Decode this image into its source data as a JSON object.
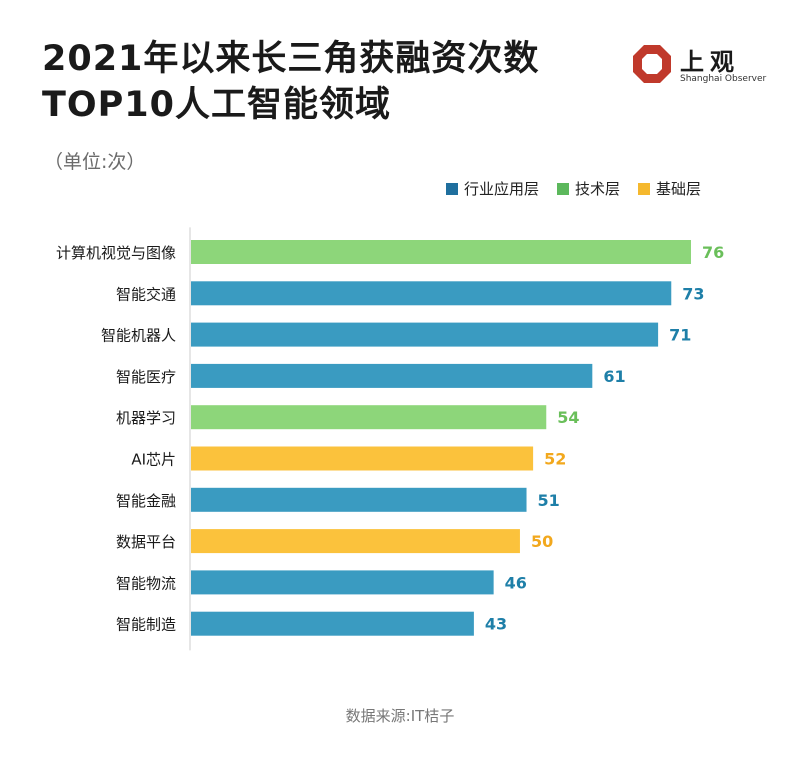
{
  "title_lines": [
    "2021年以来长三角获融资次数",
    "TOP10人工智能领域"
  ],
  "unit": "（单位:次）",
  "logo": {
    "name": "上观",
    "subtitle": "Shanghai Observer",
    "color": "#c0392b",
    "icon": "octagon-logo-icon"
  },
  "legend": [
    {
      "key": "industry",
      "label": "行业应用层",
      "color": "#1f6f9e"
    },
    {
      "key": "tech",
      "label": "技术层",
      "color": "#5cb85c"
    },
    {
      "key": "base",
      "label": "基础层",
      "color": "#f5b82e"
    }
  ],
  "colors": {
    "industry_bar": "#3a9bc1",
    "tech_bar": "#8dd67a",
    "base_bar": "#fbc23c",
    "industry_label": "#1e7fa8",
    "tech_label": "#6abf5a",
    "base_label": "#f2a81d",
    "axis": "#cccccc"
  },
  "source": "数据来源:IT桔子",
  "chart_data": {
    "type": "bar",
    "orientation": "horizontal",
    "categories": [
      "计算机视觉与图像",
      "智能交通",
      "智能机器人",
      "智能医疗",
      "机器学习",
      "AI芯片",
      "智能金融",
      "数据平台",
      "智能物流",
      "智能制造"
    ],
    "values": [
      76,
      73,
      71,
      61,
      54,
      52,
      51,
      50,
      46,
      43
    ],
    "layers": [
      "tech",
      "industry",
      "industry",
      "industry",
      "tech",
      "base",
      "industry",
      "base",
      "industry",
      "industry"
    ],
    "xlim": [
      0,
      76
    ],
    "grid": false,
    "legend": "top-right"
  }
}
